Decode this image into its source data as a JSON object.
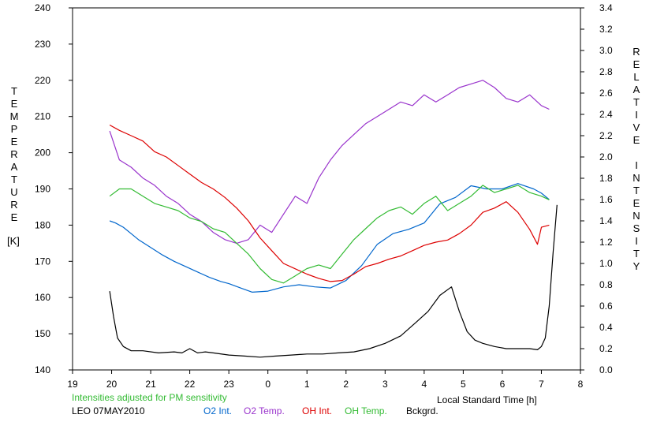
{
  "chart_data": {
    "type": "line",
    "left_axis_label": "TEMPERATURE",
    "left_axis_unit": "[K]",
    "right_axis_label": "RELATIVE INTENSITY",
    "xlabel": "Local Standard Time [h]",
    "note": "Intensities adjusted for PM sensitivity",
    "station_label": "LEO 07MAY2010",
    "x_ticks": [
      19,
      20,
      21,
      22,
      23,
      0,
      1,
      2,
      3,
      4,
      5,
      6,
      7,
      8
    ],
    "xlim": [
      19,
      32
    ],
    "ylim_left": [
      140,
      240
    ],
    "ylim_right": [
      0.0,
      3.4
    ],
    "left_ticks": [
      140,
      150,
      160,
      170,
      180,
      190,
      200,
      210,
      220,
      230,
      240
    ],
    "right_ticks": [
      "0.0",
      "0.2",
      "0.4",
      "0.6",
      "0.8",
      "1.0",
      "1.2",
      "1.4",
      "1.6",
      "1.8",
      "2.0",
      "2.2",
      "2.4",
      "2.6",
      "2.8",
      "3.0",
      "3.2",
      "3.4"
    ],
    "grid": false,
    "legend_position": "bottom",
    "series": [
      {
        "name": "O2 Int.",
        "color": "#0066cc",
        "axis": "right",
        "x": [
          19.95,
          20.1,
          20.3,
          20.5,
          20.7,
          21.0,
          21.3,
          21.6,
          21.9,
          22.2,
          22.5,
          22.8,
          23.0,
          23.3,
          23.6,
          24.0,
          24.4,
          24.8,
          25.2,
          25.6,
          26.0,
          26.4,
          26.8,
          27.2,
          27.6,
          28.0,
          28.4,
          28.8,
          29.2,
          29.6,
          30.0,
          30.4,
          30.8,
          31.0,
          31.2
        ],
        "y": [
          1.4,
          1.38,
          1.34,
          1.28,
          1.22,
          1.15,
          1.08,
          1.02,
          0.97,
          0.92,
          0.87,
          0.83,
          0.81,
          0.77,
          0.73,
          0.74,
          0.78,
          0.8,
          0.78,
          0.77,
          0.84,
          0.98,
          1.18,
          1.28,
          1.32,
          1.38,
          1.56,
          1.62,
          1.73,
          1.7,
          1.7,
          1.75,
          1.7,
          1.66,
          1.6
        ]
      },
      {
        "name": "O2 Temp.",
        "color": "#9933cc",
        "axis": "left",
        "x": [
          19.95,
          20.2,
          20.5,
          20.8,
          21.1,
          21.4,
          21.7,
          22.0,
          22.3,
          22.6,
          22.9,
          23.2,
          23.5,
          23.8,
          24.1,
          24.4,
          24.7,
          25.0,
          25.3,
          25.6,
          25.9,
          26.2,
          26.5,
          26.8,
          27.1,
          27.4,
          27.7,
          28.0,
          28.3,
          28.6,
          28.9,
          29.2,
          29.5,
          29.8,
          30.1,
          30.4,
          30.7,
          31.0,
          31.2
        ],
        "y": [
          206,
          198,
          196,
          193,
          191,
          188,
          186,
          183,
          181,
          178,
          176,
          175,
          176,
          180,
          178,
          183,
          188,
          186,
          193,
          198,
          202,
          205,
          208,
          210,
          212,
          214,
          213,
          216,
          214,
          216,
          218,
          219,
          220,
          218,
          215,
          214,
          216,
          213,
          212
        ]
      },
      {
        "name": "OH Int.",
        "color": "#dd0000",
        "axis": "right",
        "x": [
          19.95,
          20.2,
          20.5,
          20.8,
          21.1,
          21.4,
          21.7,
          22.0,
          22.3,
          22.6,
          22.9,
          23.2,
          23.5,
          23.8,
          24.1,
          24.4,
          24.7,
          25.0,
          25.3,
          25.6,
          25.9,
          26.2,
          26.5,
          26.8,
          27.1,
          27.4,
          27.7,
          28.0,
          28.3,
          28.6,
          28.9,
          29.2,
          29.5,
          29.8,
          30.1,
          30.4,
          30.7,
          30.9,
          31.0,
          31.2
        ],
        "y": [
          2.3,
          2.25,
          2.2,
          2.15,
          2.05,
          2.0,
          1.92,
          1.84,
          1.76,
          1.7,
          1.62,
          1.52,
          1.4,
          1.24,
          1.12,
          1.0,
          0.95,
          0.9,
          0.86,
          0.83,
          0.84,
          0.9,
          0.97,
          1.0,
          1.04,
          1.07,
          1.12,
          1.17,
          1.2,
          1.22,
          1.28,
          1.36,
          1.48,
          1.52,
          1.58,
          1.48,
          1.32,
          1.18,
          1.34,
          1.36
        ]
      },
      {
        "name": "OH Temp.",
        "color": "#33bb33",
        "axis": "left",
        "x": [
          19.95,
          20.2,
          20.5,
          20.8,
          21.1,
          21.4,
          21.7,
          22.0,
          22.3,
          22.6,
          22.9,
          23.2,
          23.5,
          23.8,
          24.1,
          24.4,
          24.7,
          25.0,
          25.3,
          25.6,
          25.9,
          26.2,
          26.5,
          26.8,
          27.1,
          27.4,
          27.7,
          28.0,
          28.3,
          28.6,
          28.9,
          29.2,
          29.5,
          29.8,
          30.1,
          30.4,
          30.7,
          31.0,
          31.2
        ],
        "y": [
          188,
          190,
          190,
          188,
          186,
          185,
          184,
          182,
          181,
          179,
          178,
          175,
          172,
          168,
          165,
          164,
          166,
          168,
          169,
          168,
          172,
          176,
          179,
          182,
          184,
          185,
          183,
          186,
          188,
          184,
          186,
          188,
          191,
          189,
          190,
          191,
          189,
          188,
          187
        ]
      },
      {
        "name": "Bckgrd.",
        "color": "#000000",
        "axis": "right",
        "x": [
          19.95,
          20.05,
          20.15,
          20.3,
          20.5,
          20.8,
          21.2,
          21.6,
          21.8,
          22.0,
          22.2,
          22.4,
          22.6,
          23.0,
          23.4,
          23.8,
          24.2,
          24.6,
          25.0,
          25.4,
          25.8,
          26.2,
          26.6,
          27.0,
          27.4,
          27.8,
          28.1,
          28.4,
          28.7,
          28.9,
          29.1,
          29.3,
          29.5,
          29.8,
          30.1,
          30.4,
          30.7,
          30.9,
          31.0,
          31.1,
          31.2,
          31.3,
          31.4
        ],
        "y": [
          0.74,
          0.5,
          0.3,
          0.22,
          0.18,
          0.18,
          0.16,
          0.17,
          0.16,
          0.2,
          0.16,
          0.17,
          0.16,
          0.14,
          0.13,
          0.12,
          0.13,
          0.14,
          0.15,
          0.15,
          0.16,
          0.17,
          0.2,
          0.25,
          0.32,
          0.45,
          0.55,
          0.7,
          0.78,
          0.55,
          0.36,
          0.28,
          0.25,
          0.22,
          0.2,
          0.2,
          0.2,
          0.19,
          0.22,
          0.3,
          0.6,
          1.1,
          1.55
        ]
      }
    ]
  }
}
